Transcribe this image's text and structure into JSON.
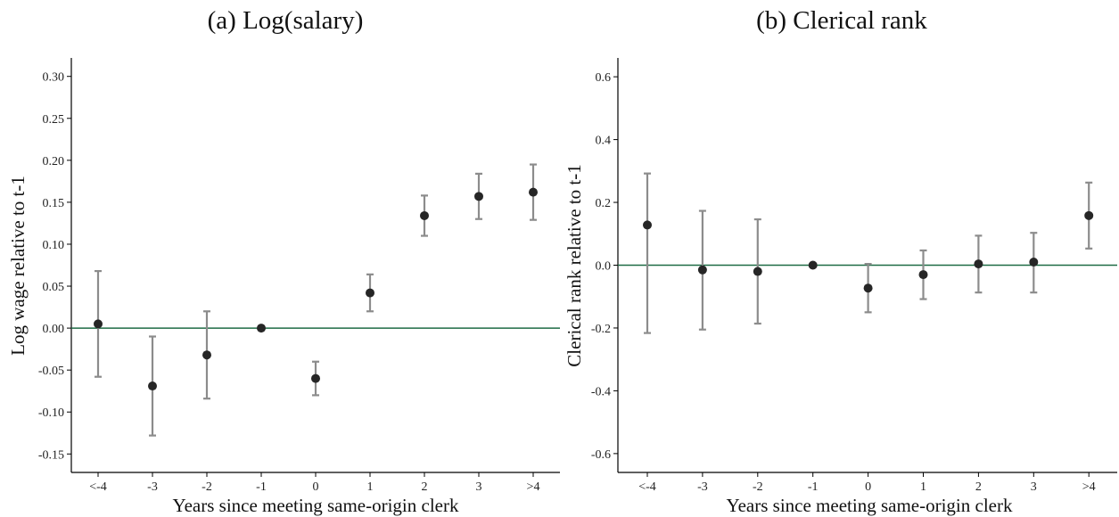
{
  "chart_data": [
    {
      "type": "scatter",
      "title": "(a) Log(salary)",
      "xlabel": "Years since meeting same-origin clerk",
      "ylabel": "Log wage relative to t-1",
      "categories": [
        "<-4",
        "-3",
        "-2",
        "-1",
        "0",
        "1",
        "2",
        "3",
        ">4"
      ],
      "values": [
        0.005,
        -0.069,
        -0.032,
        0.0,
        -0.06,
        0.042,
        0.134,
        0.157,
        0.162
      ],
      "ci_low": [
        -0.058,
        -0.128,
        -0.084,
        0.0,
        -0.08,
        0.02,
        0.11,
        0.13,
        0.129
      ],
      "ci_high": [
        0.068,
        -0.01,
        0.02,
        0.0,
        -0.04,
        0.064,
        0.158,
        0.184,
        0.195
      ],
      "yticks": [
        "-0.15",
        "-0.10",
        "-0.05",
        "0.00",
        "0.05",
        "0.10",
        "0.15",
        "0.20",
        "0.25",
        "0.30"
      ],
      "ylim": [
        -0.172,
        0.322
      ],
      "reference_line": 0,
      "grid": false,
      "colors": {
        "point": "#262626",
        "error_bar": "#8c8c8c",
        "reference_line": "#1e6b45"
      }
    },
    {
      "type": "scatter",
      "title": "(b) Clerical rank",
      "xlabel": "Years since meeting same-origin clerk",
      "ylabel": "Clerical rank relative to t-1",
      "categories": [
        "<-4",
        "-3",
        "-2",
        "-1",
        "0",
        "1",
        "2",
        "3",
        ">4"
      ],
      "values": [
        0.128,
        -0.015,
        -0.02,
        0.0,
        -0.073,
        -0.03,
        0.004,
        0.01,
        0.158
      ],
      "ci_low": [
        -0.216,
        -0.205,
        -0.186,
        0.0,
        -0.15,
        -0.108,
        -0.087,
        -0.087,
        0.053
      ],
      "ci_high": [
        0.292,
        0.173,
        0.146,
        0.0,
        0.004,
        0.047,
        0.094,
        0.103,
        0.263
      ],
      "yticks": [
        "-0.6",
        "-0.4",
        "-0.2",
        "0.0",
        "0.2",
        "0.4",
        "0.6"
      ],
      "ylim": [
        -0.66,
        0.66
      ],
      "reference_line": 0,
      "grid": false,
      "colors": {
        "point": "#262626",
        "error_bar": "#8c8c8c",
        "reference_line": "#1e6b45"
      }
    }
  ]
}
